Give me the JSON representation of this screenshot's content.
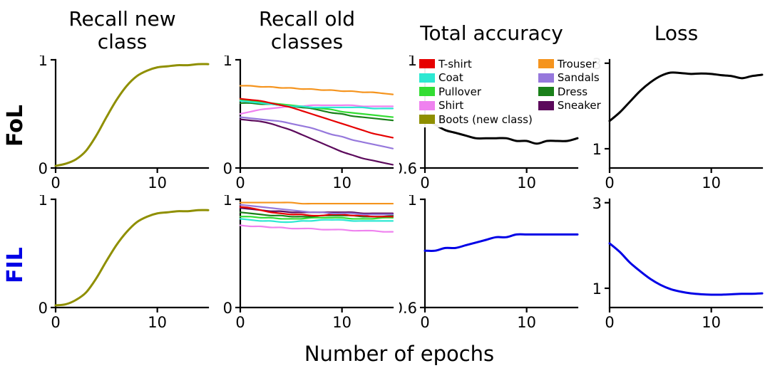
{
  "figure": {
    "xlabel": "Number of epochs",
    "col_titles": [
      "Recall new\nclass",
      "Recall old\nclasses",
      "Total accuracy",
      "Loss"
    ],
    "row_labels": [
      {
        "text": "FoL",
        "color": "#000000"
      },
      {
        "text": "FIL",
        "color": "#0000e6"
      }
    ]
  },
  "colors": {
    "tshirt": "#e60000",
    "trouser": "#f5941e",
    "coat": "#2ce8d2",
    "sandals": "#9678dc",
    "pullover": "#33dd33",
    "dress": "#1a801a",
    "shirt": "#ef82ef",
    "sneaker": "#5c0a5c",
    "boots": "#8f8f00",
    "fol_line": "#000000",
    "fil_line": "#0000e6"
  },
  "legend": {
    "items": [
      {
        "label": "T-shirt",
        "color": "#e60000"
      },
      {
        "label": "Coat",
        "color": "#2ce8d2"
      },
      {
        "label": "Pullover",
        "color": "#33dd33"
      },
      {
        "label": "Shirt",
        "color": "#ef82ef"
      },
      {
        "label": "Boots (new class)",
        "color": "#8f8f00"
      },
      {
        "label": "Trouser",
        "color": "#f5941e"
      },
      {
        "label": "Sandals",
        "color": "#9678dc"
      },
      {
        "label": "Dress",
        "color": "#1a801a"
      },
      {
        "label": "Sneaker",
        "color": "#5c0a5c"
      }
    ]
  },
  "chart_data": [
    {
      "id": "fol-recall-new",
      "row": "FoL",
      "title": "Recall new class",
      "type": "line",
      "xlim": [
        0,
        15
      ],
      "ylim": [
        0,
        1
      ],
      "xticks": [
        0,
        10
      ],
      "xtick_labels": [
        "0",
        "10"
      ],
      "yticks": [
        0,
        1
      ],
      "ytick_labels": [
        "0",
        "1"
      ],
      "lw": 3,
      "x": [
        0,
        1,
        2,
        3,
        4,
        5,
        6,
        7,
        8,
        9,
        10,
        11,
        12,
        13,
        14,
        15
      ],
      "series": [
        {
          "name": "Boots (new class)",
          "color": "#8f8f00",
          "values": [
            0.02,
            0.04,
            0.08,
            0.16,
            0.3,
            0.47,
            0.63,
            0.76,
            0.85,
            0.9,
            0.93,
            0.94,
            0.95,
            0.95,
            0.96,
            0.96
          ]
        }
      ]
    },
    {
      "id": "fol-recall-old",
      "row": "FoL",
      "title": "Recall old classes",
      "type": "line",
      "xlim": [
        0,
        15
      ],
      "ylim": [
        0,
        1
      ],
      "xticks": [
        0,
        10
      ],
      "xtick_labels": [
        "0",
        "10"
      ],
      "yticks": [
        0,
        1
      ],
      "ytick_labels": [
        "0",
        "1"
      ],
      "lw": 2.2,
      "x": [
        0,
        1,
        2,
        3,
        4,
        5,
        6,
        7,
        8,
        9,
        10,
        11,
        12,
        13,
        14,
        15
      ],
      "series": [
        {
          "name": "Sneaker",
          "color": "#5c0a5c",
          "values": [
            0.45,
            0.44,
            0.43,
            0.41,
            0.38,
            0.35,
            0.31,
            0.27,
            0.23,
            0.19,
            0.15,
            0.12,
            0.09,
            0.07,
            0.05,
            0.03
          ]
        },
        {
          "name": "Sandals",
          "color": "#9678dc",
          "values": [
            0.47,
            0.46,
            0.45,
            0.44,
            0.43,
            0.41,
            0.39,
            0.37,
            0.34,
            0.31,
            0.29,
            0.26,
            0.24,
            0.22,
            0.2,
            0.18
          ]
        },
        {
          "name": "Shirt",
          "color": "#ef82ef",
          "values": [
            0.5,
            0.52,
            0.54,
            0.55,
            0.56,
            0.57,
            0.57,
            0.58,
            0.58,
            0.58,
            0.58,
            0.58,
            0.57,
            0.57,
            0.57,
            0.57
          ]
        },
        {
          "name": "Dress",
          "color": "#1a801a",
          "values": [
            0.6,
            0.6,
            0.59,
            0.59,
            0.58,
            0.57,
            0.56,
            0.55,
            0.53,
            0.51,
            0.5,
            0.48,
            0.47,
            0.46,
            0.45,
            0.44
          ]
        },
        {
          "name": "Pullover",
          "color": "#33dd33",
          "values": [
            0.63,
            0.62,
            0.61,
            0.6,
            0.59,
            0.58,
            0.57,
            0.56,
            0.55,
            0.54,
            0.52,
            0.51,
            0.5,
            0.49,
            0.48,
            0.47
          ]
        },
        {
          "name": "Coat",
          "color": "#2ce8d2",
          "values": [
            0.62,
            0.61,
            0.6,
            0.59,
            0.58,
            0.57,
            0.57,
            0.56,
            0.56,
            0.56,
            0.56,
            0.56,
            0.56,
            0.55,
            0.55,
            0.55
          ]
        },
        {
          "name": "T-shirt",
          "color": "#e60000",
          "values": [
            0.64,
            0.63,
            0.62,
            0.6,
            0.58,
            0.56,
            0.53,
            0.5,
            0.47,
            0.44,
            0.41,
            0.38,
            0.35,
            0.32,
            0.3,
            0.28
          ]
        },
        {
          "name": "Trouser",
          "color": "#f5941e",
          "values": [
            0.76,
            0.76,
            0.75,
            0.75,
            0.74,
            0.74,
            0.73,
            0.73,
            0.72,
            0.72,
            0.71,
            0.71,
            0.7,
            0.7,
            0.69,
            0.68
          ]
        }
      ]
    },
    {
      "id": "fol-total-accuracy",
      "row": "FoL",
      "title": "Total accuracy",
      "type": "line",
      "xlim": [
        0,
        15
      ],
      "ylim": [
        0.6,
        1
      ],
      "xticks": [
        0,
        10
      ],
      "xtick_labels": [
        "0",
        "10"
      ],
      "yticks": [
        0.6,
        1
      ],
      "ytick_labels": [
        "0.6",
        "1"
      ],
      "lw": 3,
      "x": [
        0,
        1,
        2,
        3,
        4,
        5,
        6,
        7,
        8,
        9,
        10,
        11,
        12,
        13,
        14,
        15
      ],
      "series": [
        {
          "name": "Total accuracy",
          "color": "#000000",
          "values": [
            0.78,
            0.76,
            0.74,
            0.73,
            0.72,
            0.71,
            0.71,
            0.71,
            0.71,
            0.7,
            0.7,
            0.69,
            0.7,
            0.7,
            0.7,
            0.71
          ]
        }
      ]
    },
    {
      "id": "fol-loss",
      "row": "FoL",
      "title": "Loss",
      "type": "line",
      "xlim": [
        0,
        15
      ],
      "ylim": [
        0.55,
        3.08
      ],
      "xticks": [
        0,
        10
      ],
      "xtick_labels": [
        "0",
        "10"
      ],
      "yticks": [
        1,
        3
      ],
      "ytick_labels": [
        "1",
        "3"
      ],
      "lw": 3,
      "x": [
        0,
        1,
        2,
        3,
        4,
        5,
        6,
        7,
        8,
        9,
        10,
        11,
        12,
        13,
        14,
        15
      ],
      "series": [
        {
          "name": "Loss",
          "color": "#000000",
          "values": [
            1.65,
            1.85,
            2.1,
            2.35,
            2.55,
            2.7,
            2.78,
            2.77,
            2.75,
            2.76,
            2.75,
            2.72,
            2.7,
            2.65,
            2.7,
            2.73
          ]
        }
      ]
    },
    {
      "id": "fil-recall-new",
      "row": "FIL",
      "title": "Recall new class",
      "type": "line",
      "xlim": [
        0,
        15
      ],
      "ylim": [
        0,
        1
      ],
      "xticks": [
        0,
        10
      ],
      "xtick_labels": [
        "0",
        "10"
      ],
      "yticks": [
        0,
        1
      ],
      "ytick_labels": [
        "0",
        "1"
      ],
      "lw": 3,
      "x": [
        0,
        1,
        2,
        3,
        4,
        5,
        6,
        7,
        8,
        9,
        10,
        11,
        12,
        13,
        14,
        15
      ],
      "series": [
        {
          "name": "Boots (new class)",
          "color": "#8f8f00",
          "values": [
            0.02,
            0.03,
            0.07,
            0.14,
            0.27,
            0.43,
            0.58,
            0.7,
            0.79,
            0.84,
            0.87,
            0.88,
            0.89,
            0.89,
            0.9,
            0.9
          ]
        }
      ]
    },
    {
      "id": "fil-recall-old",
      "row": "FIL",
      "title": "Recall old classes",
      "type": "line",
      "xlim": [
        0,
        15
      ],
      "ylim": [
        0,
        1
      ],
      "xticks": [
        0,
        10
      ],
      "xtick_labels": [
        "0",
        "10"
      ],
      "yticks": [
        0,
        1
      ],
      "ytick_labels": [
        "0",
        "1"
      ],
      "lw": 2.2,
      "x": [
        0,
        1,
        2,
        3,
        4,
        5,
        6,
        7,
        8,
        9,
        10,
        11,
        12,
        13,
        14,
        15
      ],
      "series": [
        {
          "name": "Shirt",
          "color": "#ef82ef",
          "values": [
            0.76,
            0.75,
            0.75,
            0.74,
            0.74,
            0.73,
            0.73,
            0.73,
            0.72,
            0.72,
            0.72,
            0.71,
            0.71,
            0.71,
            0.7,
            0.7
          ]
        },
        {
          "name": "Coat",
          "color": "#2ce8d2",
          "values": [
            0.82,
            0.81,
            0.8,
            0.8,
            0.79,
            0.79,
            0.8,
            0.8,
            0.81,
            0.81,
            0.81,
            0.8,
            0.8,
            0.8,
            0.8,
            0.8
          ]
        },
        {
          "name": "Pullover",
          "color": "#33dd33",
          "values": [
            0.84,
            0.84,
            0.83,
            0.83,
            0.82,
            0.82,
            0.82,
            0.83,
            0.83,
            0.83,
            0.83,
            0.82,
            0.82,
            0.82,
            0.83,
            0.83
          ]
        },
        {
          "name": "Dress",
          "color": "#1a801a",
          "values": [
            0.88,
            0.87,
            0.86,
            0.85,
            0.85,
            0.84,
            0.84,
            0.84,
            0.85,
            0.85,
            0.85,
            0.85,
            0.84,
            0.84,
            0.84,
            0.85
          ]
        },
        {
          "name": "Sneaker",
          "color": "#5c0a5c",
          "values": [
            0.92,
            0.91,
            0.9,
            0.89,
            0.89,
            0.88,
            0.88,
            0.88,
            0.88,
            0.88,
            0.88,
            0.88,
            0.87,
            0.87,
            0.87,
            0.87
          ]
        },
        {
          "name": "T-shirt",
          "color": "#e60000",
          "values": [
            0.93,
            0.92,
            0.9,
            0.88,
            0.87,
            0.86,
            0.86,
            0.85,
            0.85,
            0.86,
            0.86,
            0.85,
            0.85,
            0.84,
            0.84,
            0.84
          ]
        },
        {
          "name": "Sandals",
          "color": "#9678dc",
          "values": [
            0.95,
            0.94,
            0.93,
            0.92,
            0.91,
            0.9,
            0.89,
            0.88,
            0.88,
            0.87,
            0.87,
            0.87,
            0.86,
            0.86,
            0.86,
            0.86
          ]
        },
        {
          "name": "Trouser",
          "color": "#f5941e",
          "values": [
            0.97,
            0.97,
            0.97,
            0.97,
            0.97,
            0.97,
            0.96,
            0.96,
            0.96,
            0.96,
            0.96,
            0.96,
            0.96,
            0.96,
            0.96,
            0.96
          ]
        }
      ]
    },
    {
      "id": "fil-total-accuracy",
      "row": "FIL",
      "title": "Total accuracy",
      "type": "line",
      "xlim": [
        0,
        15
      ],
      "ylim": [
        0.6,
        1
      ],
      "xticks": [
        0,
        10
      ],
      "xtick_labels": [
        "0",
        "10"
      ],
      "yticks": [
        0.6,
        1
      ],
      "ytick_labels": [
        "0.6",
        "1"
      ],
      "lw": 3,
      "x": [
        0,
        1,
        2,
        3,
        4,
        5,
        6,
        7,
        8,
        9,
        10,
        11,
        12,
        13,
        14,
        15
      ],
      "series": [
        {
          "name": "Total accuracy",
          "color": "#0000e6",
          "values": [
            0.81,
            0.81,
            0.82,
            0.82,
            0.83,
            0.84,
            0.85,
            0.86,
            0.86,
            0.87,
            0.87,
            0.87,
            0.87,
            0.87,
            0.87,
            0.87
          ]
        }
      ]
    },
    {
      "id": "fil-loss",
      "row": "FIL",
      "title": "Loss",
      "type": "line",
      "xlim": [
        0,
        15
      ],
      "ylim": [
        0.55,
        3.08
      ],
      "xticks": [
        0,
        10
      ],
      "xtick_labels": [
        "0",
        "10"
      ],
      "yticks": [
        1,
        3
      ],
      "ytick_labels": [
        "1",
        "3"
      ],
      "lw": 3,
      "x": [
        0,
        1,
        2,
        3,
        4,
        5,
        6,
        7,
        8,
        9,
        10,
        11,
        12,
        13,
        14,
        15
      ],
      "series": [
        {
          "name": "Loss",
          "color": "#0000e6",
          "values": [
            2.05,
            1.85,
            1.6,
            1.4,
            1.22,
            1.08,
            0.98,
            0.92,
            0.88,
            0.86,
            0.85,
            0.85,
            0.86,
            0.87,
            0.87,
            0.88
          ]
        }
      ]
    }
  ]
}
